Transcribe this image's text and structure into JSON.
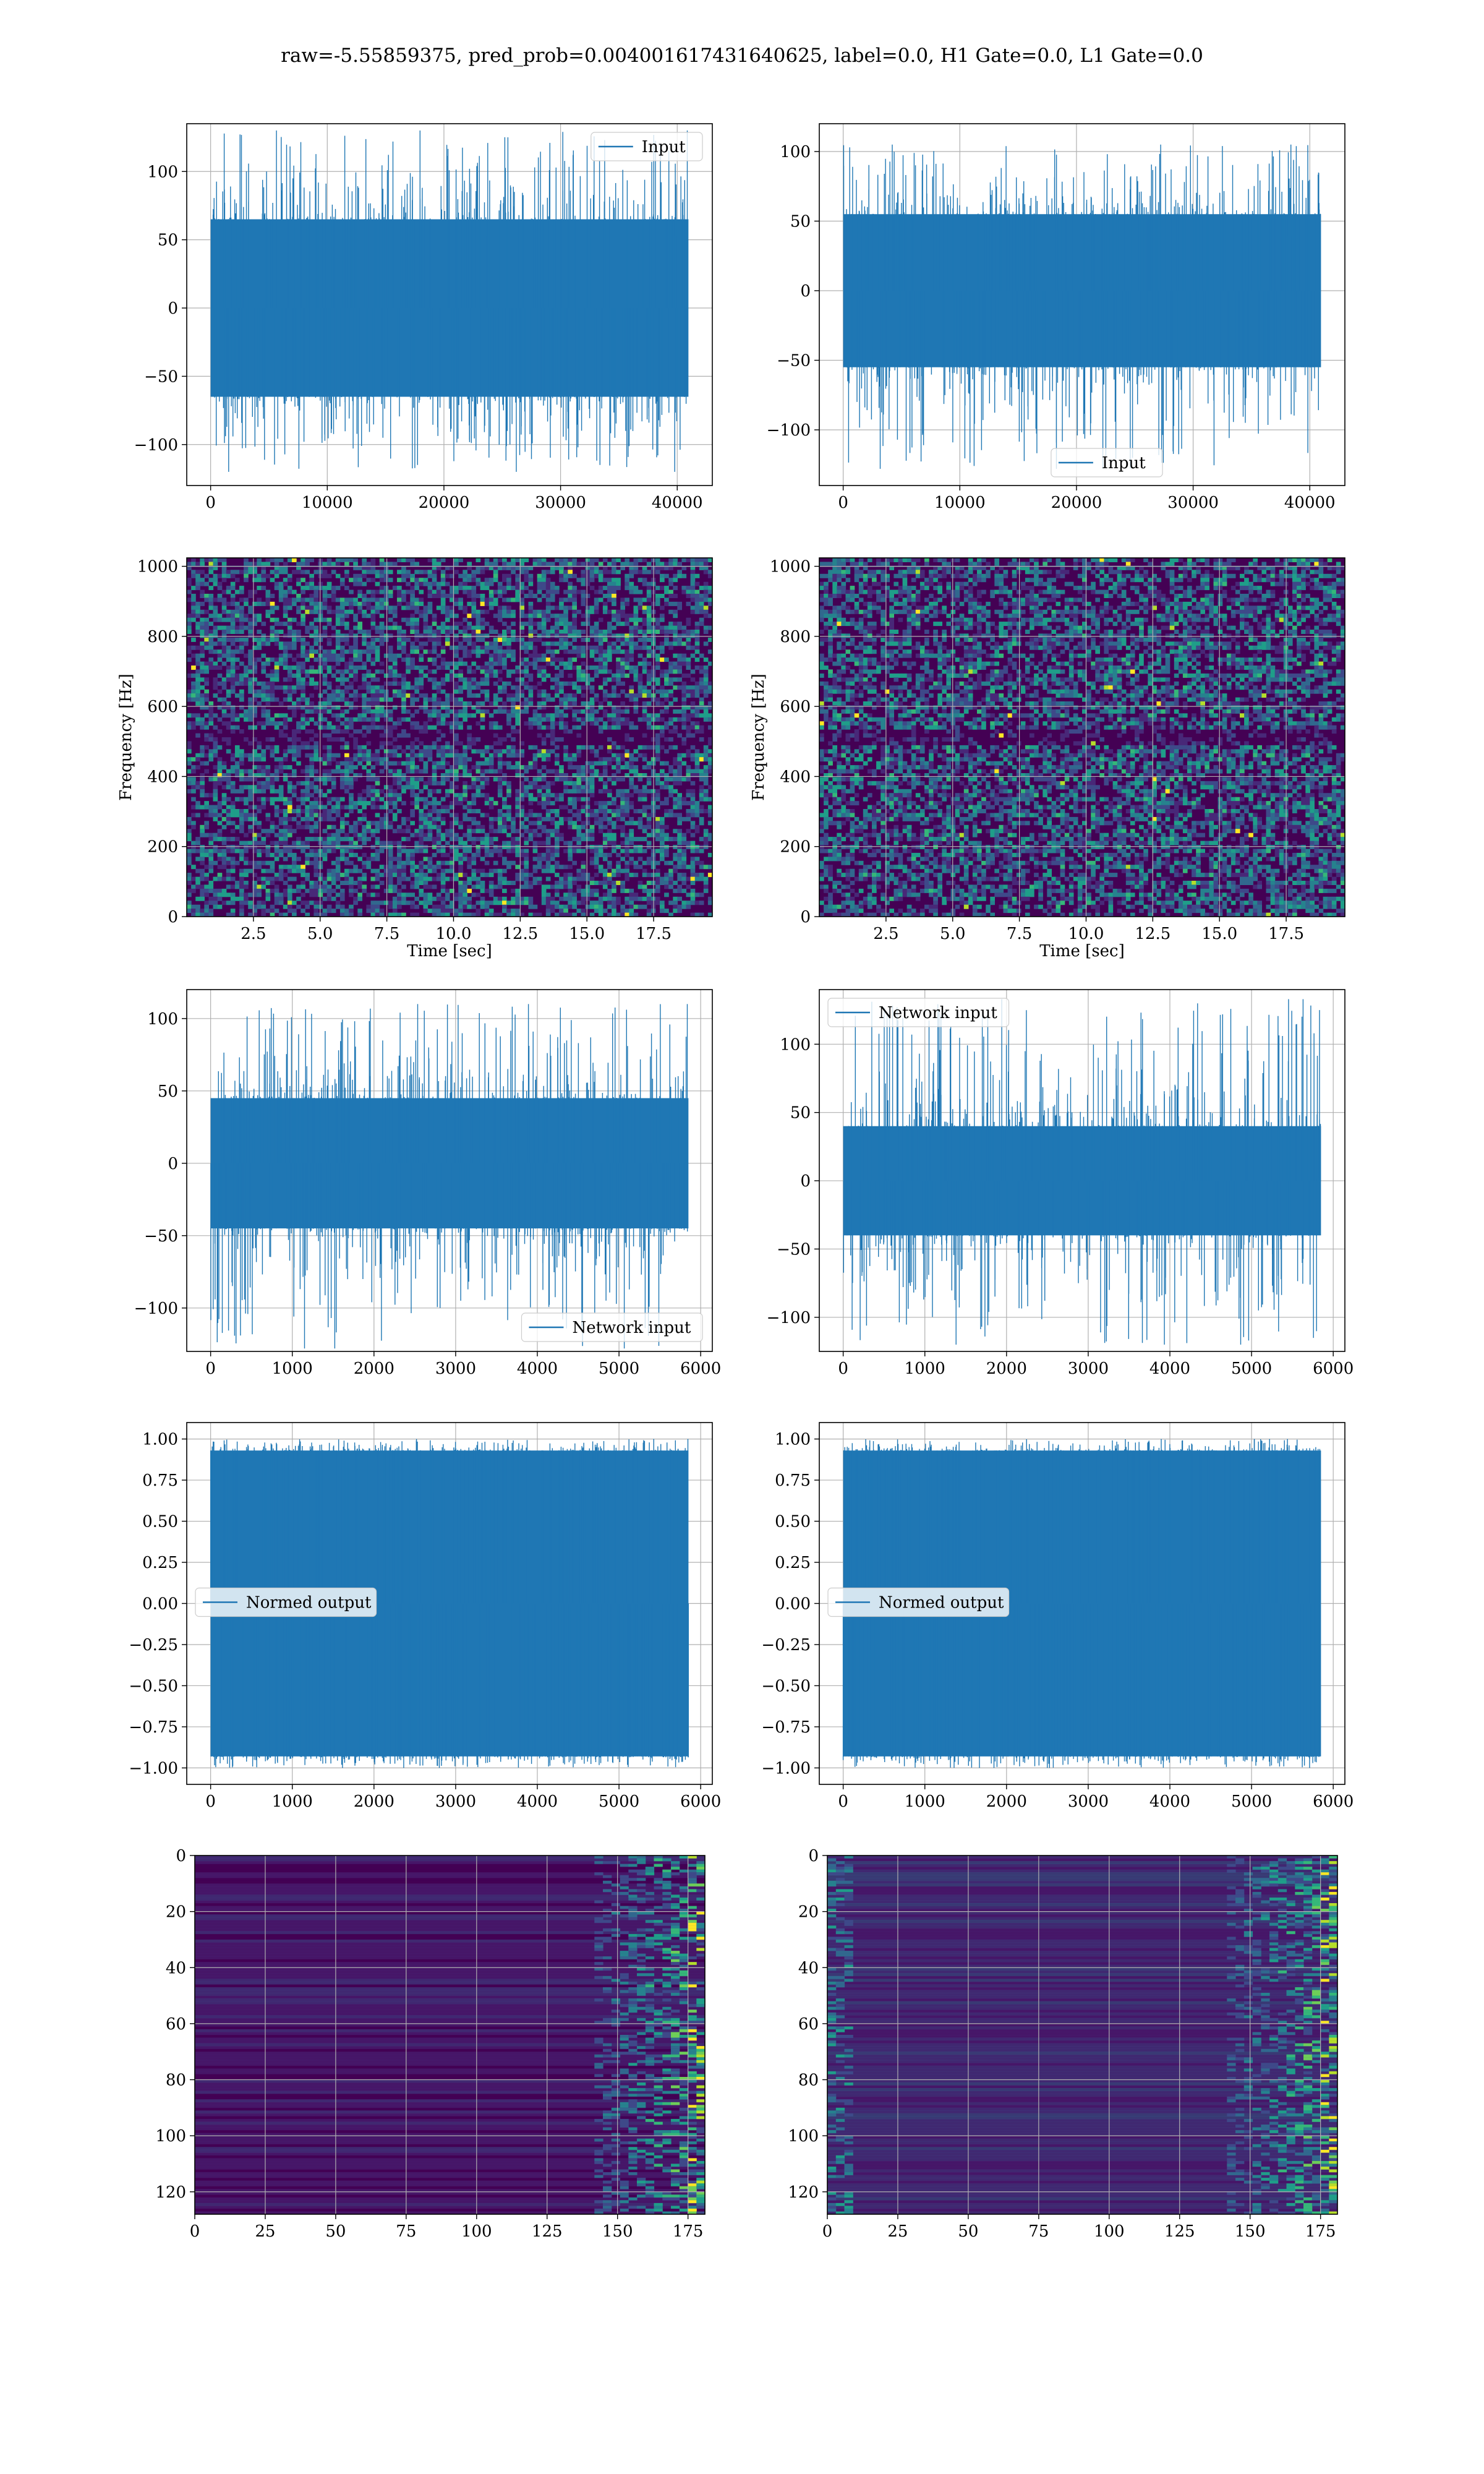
{
  "figure": {
    "title": "raw=-5.55859375, pred_prob=0.004001617431640625, label=0.0, H1 Gate=0.0, L1 Gate=0.0"
  },
  "colors": {
    "line": "#1f77b4",
    "grid": "#b0b0b0",
    "viridis": [
      "#440154",
      "#482878",
      "#3e4989",
      "#31688e",
      "#26828e",
      "#1f9e89",
      "#35b779",
      "#6ece58",
      "#b5de2b",
      "#fde725"
    ]
  },
  "chart_data": [
    {
      "id": "input-h",
      "type": "line",
      "series": [
        {
          "name": "Input"
        }
      ],
      "legend": "top-right",
      "x_range": [
        0,
        40960
      ],
      "ylim": [
        -130,
        135
      ],
      "xticks": [
        0,
        10000,
        20000,
        30000,
        40000
      ],
      "yticks": [
        -100,
        -50,
        0,
        50,
        100
      ],
      "band": [
        -65,
        65
      ],
      "spikes": [
        -120,
        130
      ],
      "xlabel": "",
      "ylabel": "",
      "grid": true
    },
    {
      "id": "input-l",
      "type": "line",
      "series": [
        {
          "name": "Input"
        }
      ],
      "legend": "bottom-center",
      "x_range": [
        0,
        40960
      ],
      "ylim": [
        -140,
        120
      ],
      "xticks": [
        0,
        10000,
        20000,
        30000,
        40000
      ],
      "yticks": [
        -100,
        -50,
        0,
        50,
        100
      ],
      "band": [
        -55,
        55
      ],
      "spikes": [
        -128,
        105
      ],
      "xlabel": "",
      "ylabel": "",
      "grid": true
    },
    {
      "id": "spec-h",
      "type": "heatmap",
      "xlim": [
        0,
        19.7
      ],
      "ylim": [
        0,
        1024
      ],
      "xticks": [
        "2.5",
        "5.0",
        "7.5",
        "10.0",
        "12.5",
        "15.0",
        "17.5"
      ],
      "yticks": [
        "0",
        "200",
        "400",
        "600",
        "800",
        "1000"
      ],
      "xlabel": "Time [sec]",
      "ylabel": "Frequency [Hz]",
      "grid": true
    },
    {
      "id": "spec-l",
      "type": "heatmap",
      "xlim": [
        0,
        19.7
      ],
      "ylim": [
        0,
        1024
      ],
      "xticks": [
        "2.5",
        "5.0",
        "7.5",
        "10.0",
        "12.5",
        "15.0",
        "17.5"
      ],
      "yticks": [
        "0",
        "200",
        "400",
        "600",
        "800",
        "1000"
      ],
      "xlabel": "Time [sec]",
      "ylabel": "Frequency [Hz]",
      "grid": true
    },
    {
      "id": "net-h",
      "type": "line",
      "series": [
        {
          "name": "Network input"
        }
      ],
      "legend": "bottom-right",
      "x_range": [
        0,
        5850
      ],
      "ylim": [
        -130,
        120
      ],
      "xticks": [
        0,
        1000,
        2000,
        3000,
        4000,
        5000,
        6000
      ],
      "yticks": [
        -100,
        -50,
        0,
        50,
        100
      ],
      "band": [
        -45,
        45
      ],
      "spikes": [
        -128,
        110
      ],
      "xlabel": "",
      "ylabel": "",
      "grid": true
    },
    {
      "id": "net-l",
      "type": "line",
      "series": [
        {
          "name": "Network input"
        }
      ],
      "legend": "top-left",
      "x_range": [
        0,
        5850
      ],
      "ylim": [
        -125,
        140
      ],
      "xticks": [
        0,
        1000,
        2000,
        3000,
        4000,
        5000,
        6000
      ],
      "yticks": [
        -100,
        -50,
        0,
        50,
        100
      ],
      "band": [
        -40,
        40
      ],
      "spikes": [
        -120,
        133
      ],
      "xlabel": "",
      "ylabel": "",
      "grid": true
    },
    {
      "id": "norm-h",
      "type": "line",
      "series": [
        {
          "name": "Normed output"
        }
      ],
      "legend": "center-left",
      "x_range": [
        0,
        5850
      ],
      "ylim": [
        -1.1,
        1.1
      ],
      "xticks": [
        0,
        1000,
        2000,
        3000,
        4000,
        5000,
        6000
      ],
      "yticks": [
        "-1.00",
        "-0.75",
        "-0.50",
        "-0.25",
        "0.00",
        "0.25",
        "0.50",
        "0.75",
        "1.00"
      ],
      "band": [
        -0.93,
        0.93
      ],
      "spikes": [
        -1.0,
        1.0
      ],
      "xlabel": "",
      "ylabel": "",
      "grid": true
    },
    {
      "id": "norm-l",
      "type": "line",
      "series": [
        {
          "name": "Normed output"
        }
      ],
      "legend": "center-left",
      "x_range": [
        0,
        5850
      ],
      "ylim": [
        -1.1,
        1.1
      ],
      "xticks": [
        0,
        1000,
        2000,
        3000,
        4000,
        5000,
        6000
      ],
      "yticks": [
        "-1.00",
        "-0.75",
        "-0.50",
        "-0.25",
        "0.00",
        "0.25",
        "0.50",
        "0.75",
        "1.00"
      ],
      "band": [
        -0.93,
        0.93
      ],
      "spikes": [
        -1.0,
        1.0
      ],
      "xlabel": "",
      "ylabel": "",
      "grid": true
    },
    {
      "id": "act-h",
      "type": "heatmap",
      "xlim": [
        0,
        181
      ],
      "ylim": [
        0,
        128
      ],
      "y_inverted": true,
      "xticks": [
        "0",
        "25",
        "50",
        "75",
        "100",
        "125",
        "150",
        "175"
      ],
      "yticks": [
        "0",
        "20",
        "40",
        "60",
        "80",
        "100",
        "120"
      ],
      "xlabel": "",
      "ylabel": "",
      "grid": true
    },
    {
      "id": "act-l",
      "type": "heatmap",
      "xlim": [
        0,
        181
      ],
      "ylim": [
        0,
        128
      ],
      "y_inverted": true,
      "xticks": [
        "0",
        "25",
        "50",
        "75",
        "100",
        "125",
        "150",
        "175"
      ],
      "yticks": [
        "0",
        "20",
        "40",
        "60",
        "80",
        "100",
        "120"
      ],
      "xlabel": "",
      "ylabel": "",
      "grid": true
    }
  ]
}
